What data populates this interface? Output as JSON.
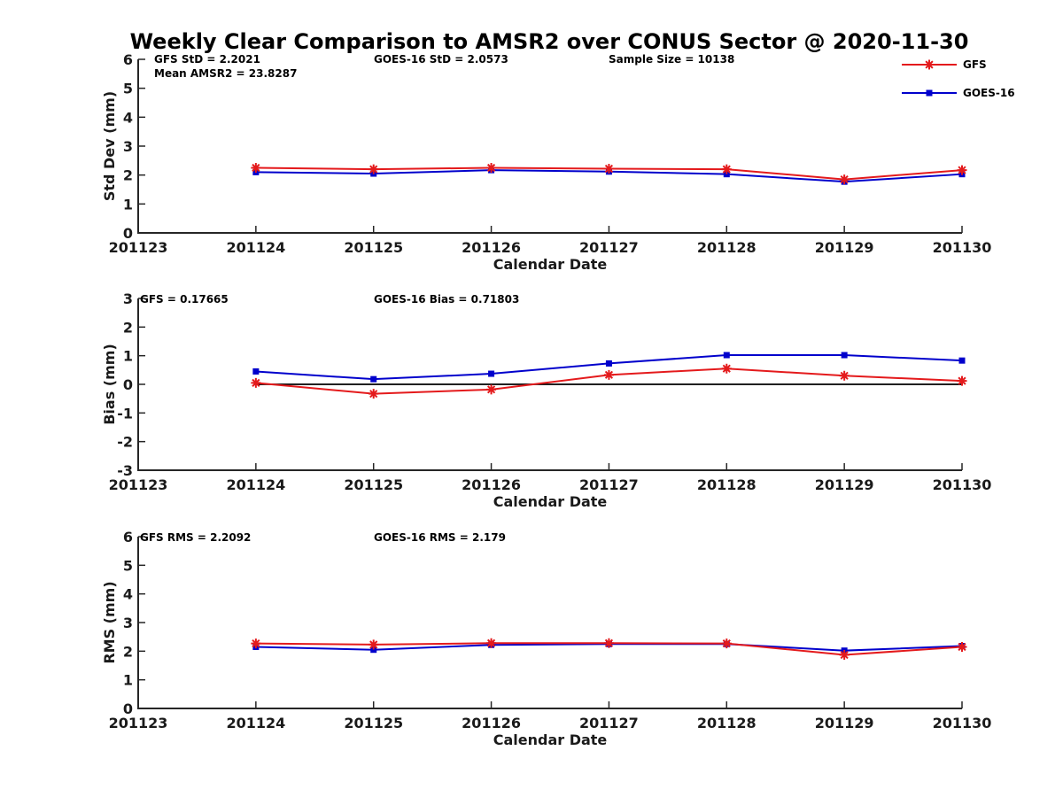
{
  "title": "Weekly Clear Comparison to AMSR2 over CONUS Sector @ 2020-11-30",
  "legend": {
    "placement": "top-right",
    "entries": [
      {
        "name": "GFS",
        "color": "#e41a1c",
        "marker": "star"
      },
      {
        "name": "GOES-16",
        "color": "#0000cc",
        "marker": "square"
      }
    ]
  },
  "chart_data": [
    {
      "type": "line",
      "xlabel": "Calendar Date",
      "ylabel": "Std Dev (mm)",
      "x_ticks": [
        "201123",
        "201124",
        "201125",
        "201126",
        "201127",
        "201128",
        "201129",
        "201130"
      ],
      "ylim": [
        0,
        6
      ],
      "y_ticks": [
        "0",
        "1",
        "2",
        "3",
        "4",
        "5",
        "6"
      ],
      "annotations": [
        "GFS StD = 2.2021",
        "Mean AMSR2 = 23.8287",
        "GOES-16 StD = 2.0573",
        "Sample Size = 10138"
      ],
      "series": [
        {
          "name": "GFS",
          "color": "#e41a1c",
          "marker": "star",
          "values": [
            null,
            2.25,
            2.2,
            2.25,
            2.22,
            2.2,
            1.85,
            2.17
          ]
        },
        {
          "name": "GOES-16",
          "color": "#0000cc",
          "marker": "square",
          "values": [
            null,
            2.1,
            2.05,
            2.17,
            2.12,
            2.03,
            1.77,
            2.03
          ]
        }
      ]
    },
    {
      "type": "line",
      "xlabel": "Calendar Date",
      "ylabel": "Bias (mm)",
      "x_ticks": [
        "201123",
        "201124",
        "201125",
        "201126",
        "201127",
        "201128",
        "201129",
        "201130"
      ],
      "ylim": [
        -3,
        3
      ],
      "y_ticks": [
        "-3",
        "-2",
        "-1",
        "0",
        "1",
        "2",
        "3"
      ],
      "zero_line": true,
      "annotations": [
        "GFS = 0.17665",
        "GOES-16 Bias  = 0.71803"
      ],
      "series": [
        {
          "name": "GFS",
          "color": "#e41a1c",
          "marker": "star",
          "values": [
            null,
            0.05,
            -0.33,
            -0.18,
            0.33,
            0.55,
            0.3,
            0.12
          ]
        },
        {
          "name": "GOES-16",
          "color": "#0000cc",
          "marker": "square",
          "values": [
            null,
            0.45,
            0.18,
            0.37,
            0.73,
            1.02,
            1.02,
            0.83
          ]
        }
      ]
    },
    {
      "type": "line",
      "xlabel": "Calendar Date",
      "ylabel": "RMS (mm)",
      "x_ticks": [
        "201123",
        "201124",
        "201125",
        "201126",
        "201127",
        "201128",
        "201129",
        "201130"
      ],
      "ylim": [
        0,
        6
      ],
      "y_ticks": [
        "0",
        "1",
        "2",
        "3",
        "4",
        "5",
        "6"
      ],
      "annotations": [
        "GFS RMS = 2.2092",
        "GOES-16 RMS = 2.179"
      ],
      "series": [
        {
          "name": "GFS",
          "color": "#e41a1c",
          "marker": "star",
          "values": [
            null,
            2.27,
            2.23,
            2.28,
            2.28,
            2.27,
            1.87,
            2.15
          ]
        },
        {
          "name": "GOES-16",
          "color": "#0000cc",
          "marker": "square",
          "values": [
            null,
            2.15,
            2.05,
            2.22,
            2.25,
            2.25,
            2.02,
            2.18
          ]
        }
      ]
    }
  ]
}
